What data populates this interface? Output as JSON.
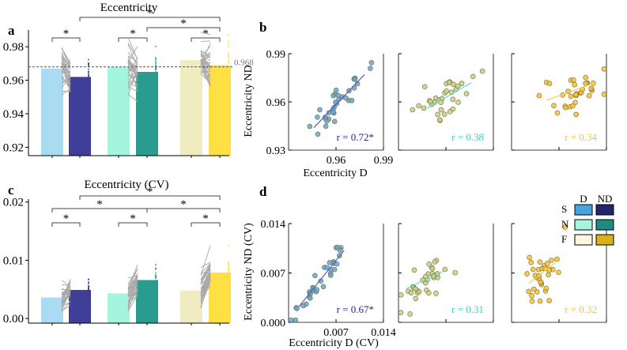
{
  "panel_labels": {
    "a": "a",
    "b": "b",
    "c": "c",
    "d": "d"
  },
  "legend": {
    "header_d": "D",
    "header_nd": "ND",
    "rows": [
      {
        "label": "S",
        "d_color": "#4aa3dc",
        "nd_color": "#25236b"
      },
      {
        "label": "N",
        "d_color": "#a6f3de",
        "nd_color": "#1d8b80"
      },
      {
        "label": "F",
        "d_color": "#fbf6dc",
        "nd_color": "#d9b21a"
      }
    ]
  },
  "colors": {
    "S_D": "#a9dcf3",
    "S_ND": "#3f3f99",
    "N_D": "#a3f5de",
    "N_ND": "#2a9b8f",
    "F_D": "#f1ecc0",
    "F_ND": "#ffe044",
    "pair_line": "#a8a8a8",
    "sig": "#444444",
    "pt_S": "#5ea9d6",
    "pt_N": "#c6d184",
    "pt_F": "#f6c234",
    "fit_S": "#5a5ac8",
    "fit_N": "#5fe0d2",
    "fit_F": "#f3cd55",
    "r_S": "#25239a",
    "r_N": "#3ccfc2",
    "r_F": "#f0c23c"
  },
  "chart_data": [
    {
      "id": "a",
      "type": "bar",
      "title": "Eccentricity",
      "categories": [
        "S-D",
        "S-ND",
        "N-D",
        "N-ND",
        "F-D",
        "F-ND"
      ],
      "values": [
        0.967,
        0.962,
        0.968,
        0.965,
        0.972,
        0.969
      ],
      "ylim": [
        0.915,
        0.99
      ],
      "yticks": [
        0.92,
        0.94,
        0.96,
        0.98
      ],
      "ytick_labels": [
        "0.92",
        "0.94",
        "0.96",
        "0.98"
      ],
      "reference_line": 0.968,
      "reference_label": "0.968",
      "significance": [
        {
          "from": 0,
          "to": 1,
          "label": "*"
        },
        {
          "from": 2,
          "to": 3,
          "label": "*"
        },
        {
          "from": 4,
          "to": 5,
          "label": "*"
        },
        {
          "from": 3,
          "to": 5,
          "label": "*"
        },
        {
          "from": 1,
          "to": 5,
          "label": "*"
        }
      ]
    },
    {
      "id": "c",
      "type": "bar",
      "title": "Eccentricity (CV)",
      "categories": [
        "S-D",
        "S-ND",
        "N-D",
        "N-ND",
        "F-D",
        "F-ND"
      ],
      "values": [
        0.0036,
        0.0049,
        0.0043,
        0.0066,
        0.0048,
        0.0079
      ],
      "ylim": [
        -0.0008,
        0.0205
      ],
      "yticks": [
        0.0,
        0.01,
        0.02
      ],
      "ytick_labels": [
        "0.00",
        "0.01",
        "0.02"
      ],
      "significance": [
        {
          "from": 0,
          "to": 1,
          "label": "*"
        },
        {
          "from": 2,
          "to": 3,
          "label": "*"
        },
        {
          "from": 4,
          "to": 5,
          "label": "*"
        },
        {
          "from": 0,
          "to": 3,
          "label": "*"
        },
        {
          "from": 3,
          "to": 5,
          "label": "*"
        },
        {
          "from": 1,
          "to": 5,
          "label": "*"
        }
      ]
    },
    {
      "id": "b",
      "type": "scatter",
      "xlabel": "Eccentricity D",
      "ylabel": "Eccentricity ND",
      "xlim": [
        0.93,
        0.99
      ],
      "ylim": [
        0.93,
        0.99
      ],
      "xticks": [
        0.96,
        0.99
      ],
      "xtick_labels": [
        "0.96",
        "0.99"
      ],
      "yticks": [
        0.93,
        0.96,
        0.99
      ],
      "ytick_labels": [
        "0.93",
        "0.96",
        "0.99"
      ],
      "subpanels": [
        {
          "group": "S",
          "r_text": "r = 0.72*",
          "fit": [
            [
              0.946,
              0.944
            ],
            [
              0.978,
              0.977
            ]
          ]
        },
        {
          "group": "N",
          "r_text": "r = 0.38",
          "fit": [
            [
              0.948,
              0.956
            ],
            [
              0.976,
              0.972
            ]
          ]
        },
        {
          "group": "F",
          "r_text": "r = 0.34",
          "fit": [
            [
              0.952,
              0.961
            ],
            [
              0.983,
              0.972
            ]
          ]
        }
      ]
    },
    {
      "id": "d",
      "type": "scatter",
      "xlabel": "Eccentricity D (CV)",
      "ylabel": "Eccentricity ND (CV)",
      "xlim": [
        0.0,
        0.014
      ],
      "ylim": [
        0.0,
        0.014
      ],
      "xticks": [
        0.007,
        0.014
      ],
      "xtick_labels": [
        "0.007",
        "0.014"
      ],
      "yticks": [
        0.0,
        0.007,
        0.014
      ],
      "ytick_labels": [
        "0.000",
        "0.007",
        "0.014"
      ],
      "subpanels": [
        {
          "group": "S",
          "r_text": "r = 0.67*",
          "fit": [
            [
              0.0015,
              0.0022
            ],
            [
              0.0082,
              0.0102
            ]
          ]
        },
        {
          "group": "N",
          "r_text": "r = 0.31",
          "fit": [
            [
              0.0012,
              0.0048
            ],
            [
              0.0065,
              0.0072
            ]
          ]
        },
        {
          "group": "F",
          "r_text": "r = 0.32",
          "fit": [
            [
              0.0025,
              0.0055
            ],
            [
              0.0065,
              0.0085
            ]
          ]
        }
      ]
    }
  ]
}
